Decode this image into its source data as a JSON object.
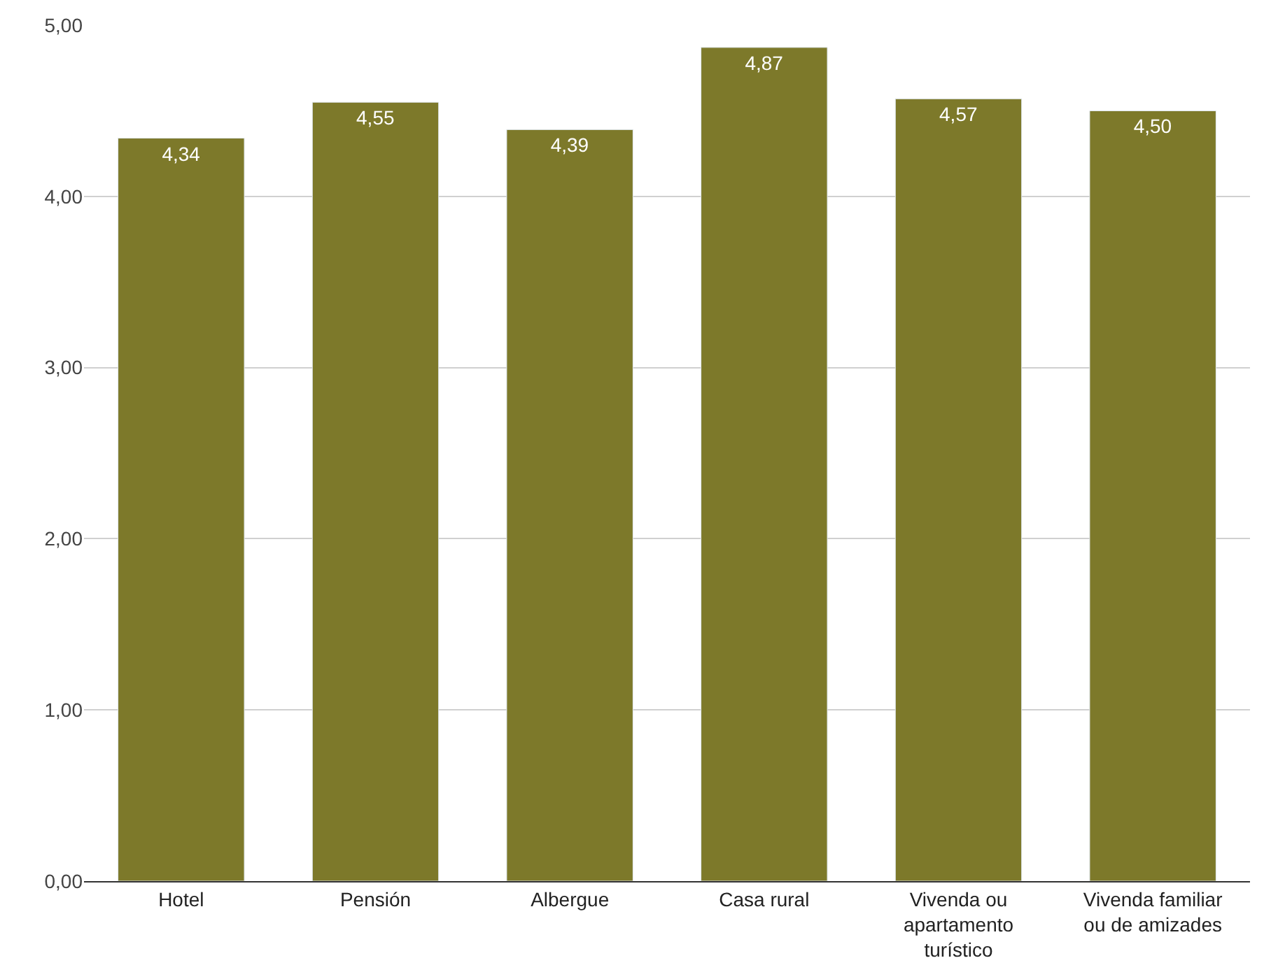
{
  "chart_data": {
    "type": "bar",
    "categories": [
      "Hotel",
      "Pensión",
      "Albergue",
      "Casa rural",
      "Vivenda ou apartamento turístico",
      "Vivenda familiar ou de amizades"
    ],
    "values": [
      4.34,
      4.55,
      4.39,
      4.87,
      4.57,
      4.5
    ],
    "value_labels": [
      "4,34",
      "4,55",
      "4,39",
      "4,87",
      "4,57",
      "4,50"
    ],
    "color": "#7d792a",
    "ylim": [
      0,
      5
    ],
    "yticks": [
      {
        "value": 0,
        "label": "0,00"
      },
      {
        "value": 1,
        "label": "1,00"
      },
      {
        "value": 2,
        "label": "2,00"
      },
      {
        "value": 3,
        "label": "3,00"
      },
      {
        "value": 4,
        "label": "4,00"
      },
      {
        "value": 5,
        "label": "5,00"
      }
    ],
    "grid": "y"
  }
}
